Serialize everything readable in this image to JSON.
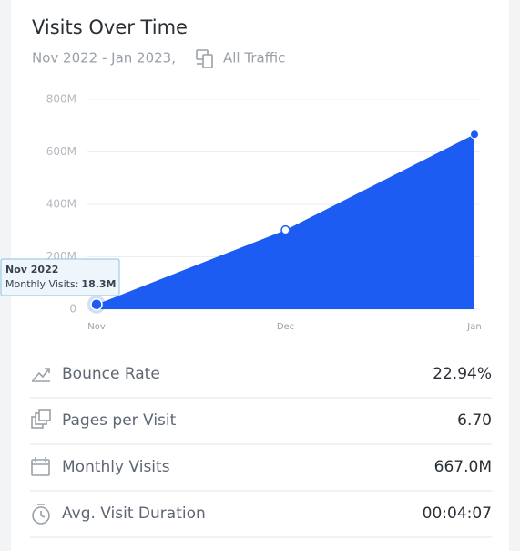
{
  "header": {
    "title": "Visits Over Time",
    "subtitle": "Nov 2022 - Jan 2023,",
    "filter": "All Traffic"
  },
  "chart_data": {
    "type": "area",
    "categories": [
      "Nov",
      "Dec",
      "Jan"
    ],
    "values": [
      18300000,
      302000000,
      667000000
    ],
    "color": "#1c5cf2",
    "ylim": [
      0,
      800000000
    ],
    "yticks": [
      0,
      {
        "value": 200000000,
        "label": "200M"
      },
      {
        "value": 400000000,
        "label": "400M"
      },
      {
        "value": 600000000,
        "label": "600M"
      },
      {
        "value": 800000000,
        "label": "800M"
      }
    ],
    "grid": true,
    "tooltip": {
      "title": "Nov 2022",
      "label": "Monthly Visits:",
      "value_label": "18.3M"
    }
  },
  "metrics": [
    {
      "label": "Bounce Rate",
      "value": "22.94%"
    },
    {
      "label": "Pages per Visit",
      "value": "6.70"
    },
    {
      "label": "Monthly Visits",
      "value": "667.0M"
    },
    {
      "label": "Avg. Visit Duration",
      "value": "00:04:07"
    }
  ]
}
